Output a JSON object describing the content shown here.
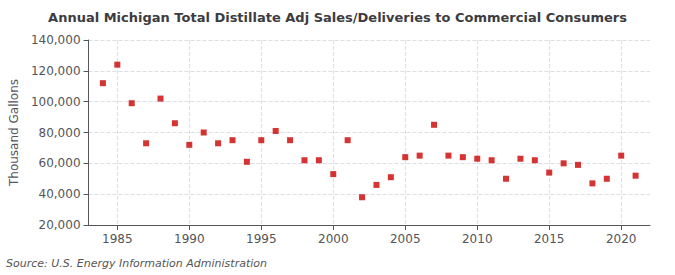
{
  "chart_data": {
    "type": "scatter",
    "title": "Annual Michigan Total Distillate Adj Sales/Deliveries to Commercial Consumers",
    "ylabel": "Thousand Gallons",
    "source": "Source: U.S. Energy Information Administration",
    "x": [
      1984,
      1985,
      1986,
      1987,
      1988,
      1989,
      1990,
      1991,
      1992,
      1993,
      1994,
      1995,
      1996,
      1997,
      1998,
      1999,
      2000,
      2001,
      2002,
      2003,
      2004,
      2005,
      2006,
      2007,
      2008,
      2009,
      2010,
      2011,
      2012,
      2013,
      2014,
      2015,
      2016,
      2017,
      2018,
      2019,
      2020,
      2021
    ],
    "values": [
      112000,
      124000,
      99000,
      73000,
      102000,
      86000,
      72000,
      80000,
      73000,
      75000,
      61000,
      75000,
      81000,
      75000,
      62000,
      62000,
      53000,
      75000,
      38000,
      46000,
      51000,
      64000,
      65000,
      85000,
      65000,
      64000,
      63000,
      62000,
      50000,
      63000,
      62000,
      54000,
      60000,
      59000,
      47000,
      50000,
      65000,
      52000
    ],
    "color": "#cc0000",
    "marker": "square",
    "xlim": [
      1983,
      2022
    ],
    "xticks": [
      1985,
      1990,
      1995,
      2000,
      2005,
      2010,
      2015,
      2020
    ],
    "ylim": [
      20000,
      140000
    ],
    "yticks": [
      {
        "value": 20000,
        "label": "20,000"
      },
      {
        "value": 40000,
        "label": "40,000"
      },
      {
        "value": 60000,
        "label": "60,000"
      },
      {
        "value": 80000,
        "label": "80,000"
      },
      {
        "value": 100000,
        "label": "100,000"
      },
      {
        "value": 120000,
        "label": "120,000"
      },
      {
        "value": 140000,
        "label": "140,000"
      }
    ],
    "grid": true
  }
}
